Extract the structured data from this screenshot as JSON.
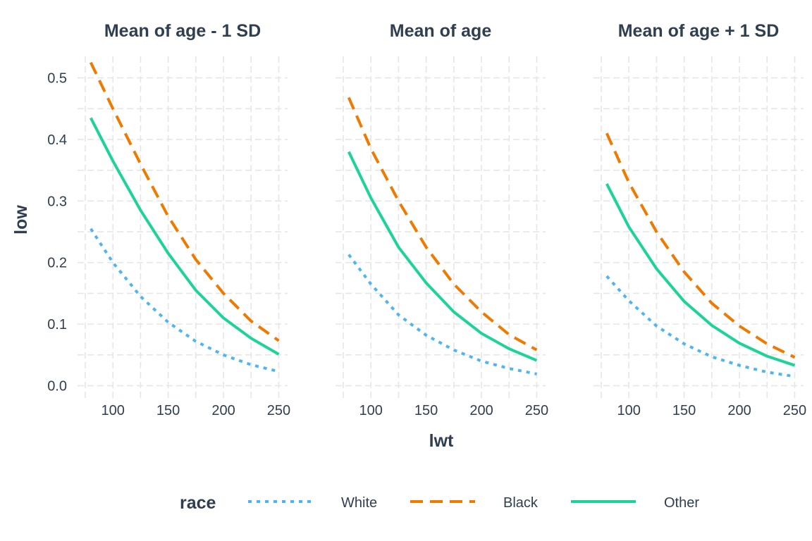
{
  "chart_data": {
    "type": "line",
    "x_axis_label": "lwt",
    "y_axis_label": "low",
    "xlim": [
      68,
      258
    ],
    "ylim": [
      -0.02,
      0.535
    ],
    "x_ticks": [
      100,
      150,
      200,
      250
    ],
    "y_ticks": [
      0.0,
      0.1,
      0.2,
      0.3,
      0.4,
      0.5
    ],
    "y_tick_labels": [
      "0.0",
      "0.1",
      "0.2",
      "0.3",
      "0.4",
      "0.5"
    ],
    "grid": true,
    "legend": {
      "title": "race",
      "placement": "bottom",
      "entries": [
        "White",
        "Black",
        "Other"
      ]
    },
    "series_style": [
      {
        "name": "White",
        "color": "#4fb5f0",
        "dash": "dotted"
      },
      {
        "name": "Black",
        "color": "#ef7a00",
        "dash": "dashed"
      },
      {
        "name": "Other",
        "color": "#1ed39a",
        "dash": "solid"
      }
    ],
    "x": [
      80,
      100,
      125,
      150,
      175,
      200,
      225,
      250
    ],
    "panels": [
      {
        "title": "Mean of age - 1 SD",
        "series": [
          {
            "name": "White",
            "values": [
              0.255,
              0.2,
              0.145,
              0.103,
              0.072,
              0.05,
              0.034,
              0.023
            ]
          },
          {
            "name": "Black",
            "values": [
              0.525,
              0.45,
              0.36,
              0.275,
              0.205,
              0.15,
              0.105,
              0.073
            ]
          },
          {
            "name": "Other",
            "values": [
              0.435,
              0.365,
              0.285,
              0.215,
              0.155,
              0.11,
              0.077,
              0.051
            ]
          }
        ]
      },
      {
        "title": "Mean of age",
        "series": [
          {
            "name": "White",
            "values": [
              0.213,
              0.165,
              0.115,
              0.082,
              0.058,
              0.04,
              0.028,
              0.019
            ]
          },
          {
            "name": "Black",
            "values": [
              0.468,
              0.385,
              0.3,
              0.225,
              0.165,
              0.12,
              0.083,
              0.058
            ]
          },
          {
            "name": "Other",
            "values": [
              0.38,
              0.305,
              0.225,
              0.167,
              0.12,
              0.085,
              0.06,
              0.041
            ]
          }
        ]
      },
      {
        "title": "Mean of age + 1 SD",
        "series": [
          {
            "name": "White",
            "values": [
              0.178,
              0.138,
              0.097,
              0.068,
              0.047,
              0.033,
              0.022,
              0.015
            ]
          },
          {
            "name": "Black",
            "values": [
              0.41,
              0.33,
              0.25,
              0.185,
              0.134,
              0.097,
              0.068,
              0.046
            ]
          },
          {
            "name": "Other",
            "values": [
              0.328,
              0.258,
              0.19,
              0.137,
              0.098,
              0.069,
              0.048,
              0.033
            ]
          }
        ]
      }
    ]
  }
}
